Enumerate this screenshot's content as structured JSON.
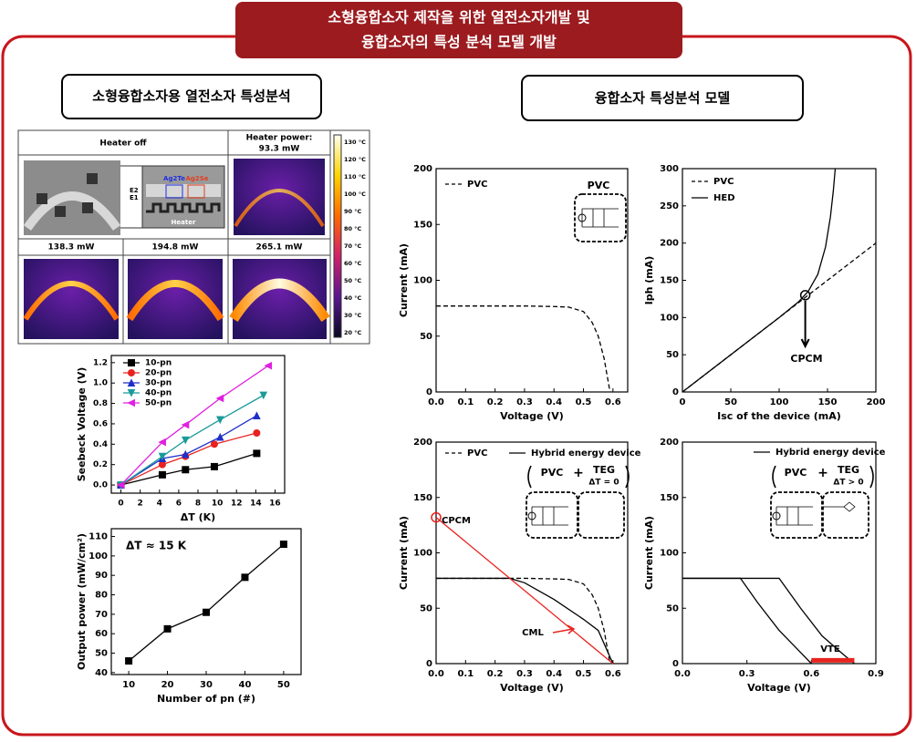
{
  "banner": [
    "소형융합소자 제작을 위한 열전소자개발 및",
    "융합소자의 특성 분석 모델 개발"
  ],
  "sections": [
    "소형융합소자용 열전소자 특성분석",
    "융합소자 특성분석 모델"
  ],
  "thermal": {
    "headers": [
      "Heater off",
      "Heater power:",
      "93.3 mW",
      "138.3 mW",
      "194.8 mW",
      "265.1 mW"
    ],
    "inset_labels": [
      "Ag2Te",
      "Ag2Se",
      "E2",
      "E1",
      "Heater"
    ],
    "colorbar": [
      "130 °C",
      "120 °C",
      "110 °C",
      "100 °C",
      "90 °C",
      "80 °C",
      "70 °C",
      "60 °C",
      "50 °C",
      "40 °C",
      "30 °C",
      "20 °C"
    ]
  },
  "chart_data": [
    {
      "type": "line",
      "x_label": "ΔT (K)",
      "y_label": "Seebeck Voltage (V)",
      "xlim": [
        -1,
        17
      ],
      "xticks": [
        0,
        2,
        4,
        6,
        8,
        10,
        12,
        14,
        16
      ],
      "ylim": [
        -0.08,
        1.27
      ],
      "yticks": [
        {
          "value": 0,
          "label": "0.0"
        },
        0.2,
        0.4,
        0.6,
        0.8,
        {
          "value": 1,
          "label": "1.0"
        },
        1.2
      ],
      "series": [
        {
          "name": "10-pn",
          "color": "#000000",
          "marker": "square",
          "x": [
            0,
            4.3,
            6.7,
            9.7,
            14.1
          ],
          "values": [
            0,
            0.1,
            0.15,
            0.18,
            0.31
          ]
        },
        {
          "name": "20-pn",
          "color": "#e8231f",
          "marker": "circle",
          "x": [
            0,
            4.3,
            6.7,
            9.7,
            14.1
          ],
          "values": [
            0,
            0.2,
            0.28,
            0.4,
            0.51
          ]
        },
        {
          "name": "30-pn",
          "color": "#1f2fc8",
          "marker": "triangle-up",
          "x": [
            0,
            4.3,
            6.7,
            10.3,
            14.1
          ],
          "values": [
            0,
            0.26,
            0.3,
            0.47,
            0.68
          ]
        },
        {
          "name": "40-pn",
          "color": "#1a9a9a",
          "marker": "triangle-down",
          "x": [
            0,
            4.3,
            6.7,
            10.3,
            14.8
          ],
          "values": [
            0,
            0.28,
            0.44,
            0.64,
            0.88
          ]
        },
        {
          "name": "50-pn",
          "color": "#e020e0",
          "marker": "triangle-left",
          "x": [
            0,
            4.3,
            6.7,
            10.3,
            15.3
          ],
          "values": [
            0,
            0.42,
            0.59,
            0.85,
            1.17
          ]
        }
      ]
    },
    {
      "type": "line",
      "x_label": "Number of pn (#)",
      "y_label": "Output power (mW/cm²)",
      "xlim": [
        5.5,
        54.5
      ],
      "xticks": [
        10,
        20,
        30,
        40,
        50
      ],
      "ylim": [
        39,
        114
      ],
      "yticks": [
        40,
        50,
        60,
        70,
        80,
        90,
        100,
        110
      ],
      "annotations": [
        "ΔT ≈ 15 K"
      ],
      "x": [
        10,
        20,
        30,
        40,
        50
      ],
      "series": [
        {
          "color": "#000000",
          "marker": "square",
          "values": [
            46,
            62.5,
            71,
            89,
            106
          ]
        }
      ]
    },
    {
      "type": "line",
      "x_label": "Voltage (V)",
      "y_label": "Current (mA)",
      "xlim": [
        0,
        0.65
      ],
      "xticks": [
        {
          "value": 0,
          "label": "0.0"
        },
        0.1,
        0.2,
        0.3,
        0.4,
        0.5,
        0.6
      ],
      "ylim": [
        0,
        200
      ],
      "yticks": [
        0,
        50,
        100,
        150,
        200
      ],
      "annotations": [
        "PVC"
      ],
      "series": [
        {
          "name": "PVC",
          "color": "#000000",
          "dash": true,
          "x": [
            0,
            0.1,
            0.2,
            0.3,
            0.4,
            0.45,
            0.5,
            0.53,
            0.55,
            0.57,
            0.59
          ],
          "values": [
            77,
            77,
            77,
            77,
            76.5,
            76,
            72,
            62,
            50,
            30,
            0
          ]
        }
      ]
    },
    {
      "type": "line",
      "x_label": "Isc of the device (mA)",
      "y_label": "Iph (mA)",
      "xlim": [
        0,
        200
      ],
      "xticks": [
        0,
        50,
        100,
        150,
        200
      ],
      "ylim": [
        0,
        300
      ],
      "yticks": [
        0,
        50,
        100,
        150,
        200,
        250,
        300
      ],
      "annotations": [
        "CPCM"
      ],
      "series": [
        {
          "name": "PVC",
          "color": "#000000",
          "dash": true,
          "x": [
            0,
            200
          ],
          "values": [
            0,
            200
          ]
        },
        {
          "name": "HED",
          "color": "#000000",
          "x": [
            0,
            100,
            120,
            130,
            140,
            148,
            153,
            156,
            158
          ],
          "values": [
            0,
            100,
            121,
            135,
            158,
            195,
            235,
            270,
            300
          ]
        }
      ]
    },
    {
      "type": "line",
      "x_label": "Voltage (V)",
      "y_label": "Current (mA)",
      "xlim": [
        0,
        0.65
      ],
      "xticks": [
        {
          "value": 0,
          "label": "0.0"
        },
        0.1,
        0.2,
        0.3,
        0.4,
        0.5,
        0.6
      ],
      "ylim": [
        0,
        200
      ],
      "yticks": [
        0,
        50,
        100,
        150,
        200
      ],
      "annotations": [
        "CPCM",
        "CML",
        "PVC",
        "+",
        "TEG",
        "ΔT = 0"
      ],
      "series": [
        {
          "name": "PVC",
          "color": "#000000",
          "dash": true,
          "x": [
            0,
            0.1,
            0.2,
            0.3,
            0.4,
            0.45,
            0.5,
            0.53,
            0.55,
            0.57,
            0.59
          ],
          "values": [
            77,
            77,
            77,
            77,
            76.5,
            76,
            72,
            62,
            50,
            30,
            0
          ]
        },
        {
          "name": "Hybrid energy device",
          "color": "#000000",
          "x": [
            0,
            0.25,
            0.3,
            0.4,
            0.5,
            0.55,
            0.6
          ],
          "values": [
            77,
            77,
            73,
            58,
            40,
            30,
            0
          ]
        },
        {
          "color": "#e8231f",
          "x": [
            0,
            0.6
          ],
          "values": [
            132,
            0
          ]
        }
      ]
    },
    {
      "type": "line",
      "x_label": "Voltage (V)",
      "y_label": "Current (mA)",
      "xlim": [
        0,
        0.9
      ],
      "xticks": [
        {
          "value": 0,
          "label": "0.0"
        },
        0.3,
        0.6,
        0.9
      ],
      "ylim": [
        0,
        200
      ],
      "yticks": [
        0,
        50,
        100,
        150,
        200
      ],
      "annotations": [
        "PVC",
        "+",
        "TEG",
        "ΔT > 0",
        "VTE"
      ],
      "series": [
        {
          "name": "Hybrid energy device",
          "color": "#000000",
          "x": [
            0,
            0.27,
            0.35,
            0.45,
            0.55,
            0.6
          ],
          "values": [
            77,
            77,
            55,
            30,
            10,
            0
          ]
        },
        {
          "color": "#000000",
          "x": [
            0,
            0.45,
            0.55,
            0.65,
            0.75,
            0.8
          ],
          "values": [
            77,
            77,
            50,
            25,
            8,
            0
          ]
        },
        {
          "color": "#e8231f",
          "line_width": 5,
          "x": [
            0.6,
            0.8
          ],
          "values": [
            3,
            3
          ]
        }
      ]
    }
  ]
}
